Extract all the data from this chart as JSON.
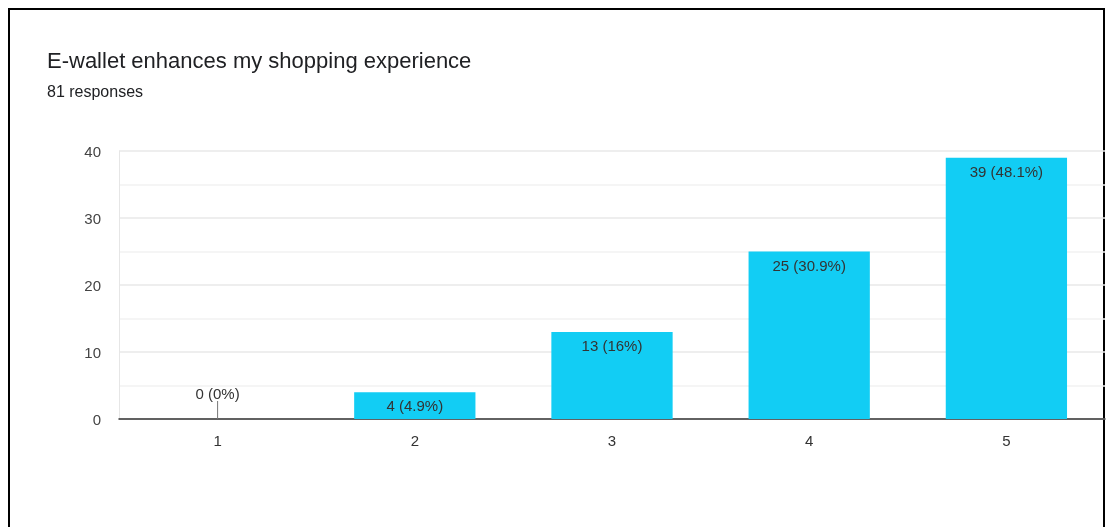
{
  "chart_data": {
    "type": "bar",
    "title": "E-wallet enhances my shopping experience",
    "subtitle": "81 responses",
    "categories": [
      "1",
      "2",
      "3",
      "4",
      "5"
    ],
    "values": [
      0,
      4,
      13,
      25,
      39
    ],
    "color": "#12cdf4",
    "value_labels": [
      "0 (0%)",
      "4 (4.9%)",
      "13 (16%)",
      "25 (30.9%)",
      "39 (48.1%)"
    ],
    "ylim": [
      0,
      40
    ],
    "yticks": [
      0,
      10,
      20,
      30,
      40
    ],
    "grid": true
  }
}
